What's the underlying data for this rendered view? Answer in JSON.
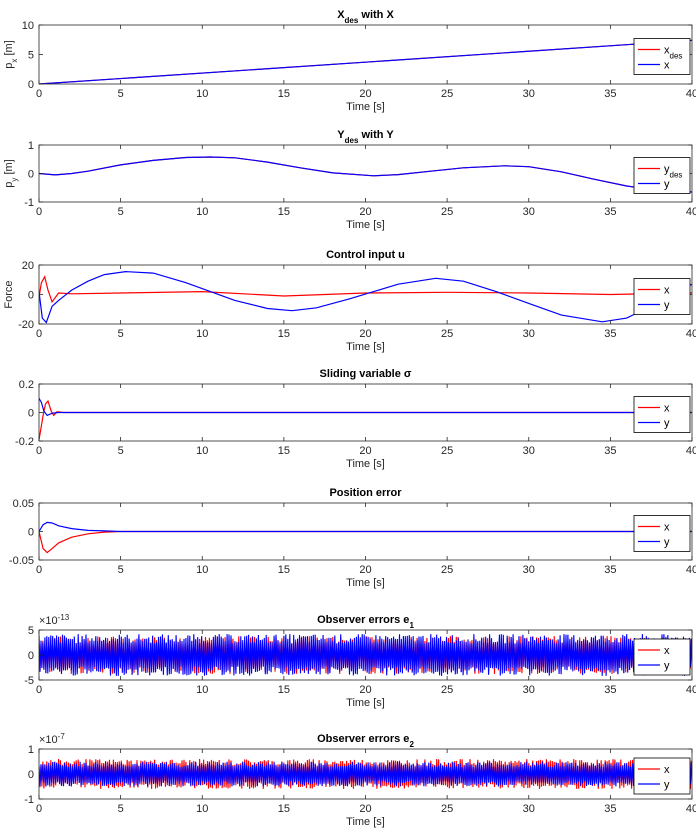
{
  "colors": {
    "x": "#ff0000",
    "y": "#0000ff",
    "axis": "#262626"
  },
  "chart_data": [
    {
      "type": "line",
      "title": "X",
      "title_sub": "des",
      "title_suffix": " with X",
      "xlabel": "Time [s]",
      "ylabel": "p",
      "ylabel_sub": "x",
      "ylabel_suffix": " [m]",
      "xlim": [
        0,
        40
      ],
      "ylim": [
        0,
        10
      ],
      "xticks": [
        0,
        5,
        10,
        15,
        20,
        25,
        30,
        35,
        40
      ],
      "yticks": [
        0,
        5,
        10
      ],
      "legend_position": "right",
      "series": [
        {
          "name": "x",
          "name_sub": "des",
          "color": "#ff0000",
          "x": [
            0,
            40
          ],
          "y": [
            0,
            7.4
          ]
        },
        {
          "name": "x",
          "color": "#0000ff",
          "x": [
            0,
            40
          ],
          "y": [
            0,
            7.4
          ]
        }
      ]
    },
    {
      "type": "line",
      "title": "Y",
      "title_sub": "des",
      "title_suffix": " with Y",
      "xlabel": "Time [s]",
      "ylabel": "p",
      "ylabel_sub": "y",
      "ylabel_suffix": " [m]",
      "xlim": [
        0,
        40
      ],
      "ylim": [
        -1,
        1
      ],
      "xticks": [
        0,
        5,
        10,
        15,
        20,
        25,
        30,
        35,
        40
      ],
      "yticks": [
        -1,
        0,
        1
      ],
      "legend_position": "right",
      "series": [
        {
          "name": "y",
          "name_sub": "des",
          "color": "#ff0000",
          "x": [
            0,
            1,
            2,
            3,
            5,
            7,
            9,
            10.5,
            12,
            14,
            16,
            18,
            20.5,
            22,
            24,
            26,
            28.5,
            30,
            32,
            34,
            36,
            38,
            40
          ],
          "y": [
            0,
            -0.05,
            0,
            0.08,
            0.3,
            0.46,
            0.56,
            0.58,
            0.55,
            0.4,
            0.2,
            0.02,
            -0.08,
            -0.04,
            0.08,
            0.2,
            0.27,
            0.24,
            0.06,
            -0.2,
            -0.44,
            -0.6,
            -0.65
          ]
        },
        {
          "name": "y",
          "color": "#0000ff",
          "x": [
            0,
            1,
            2,
            3,
            5,
            7,
            9,
            10.5,
            12,
            14,
            16,
            18,
            20.5,
            22,
            24,
            26,
            28.5,
            30,
            32,
            34,
            36,
            38,
            40
          ],
          "y": [
            0,
            -0.05,
            0,
            0.08,
            0.3,
            0.46,
            0.56,
            0.58,
            0.55,
            0.4,
            0.2,
            0.02,
            -0.08,
            -0.04,
            0.08,
            0.2,
            0.27,
            0.24,
            0.06,
            -0.2,
            -0.44,
            -0.6,
            -0.65
          ]
        }
      ]
    },
    {
      "type": "line",
      "title": "Control input u",
      "xlabel": "Time [s]",
      "ylabel": "Force",
      "xlim": [
        0,
        40
      ],
      "ylim": [
        -20,
        20
      ],
      "xticks": [
        0,
        5,
        10,
        15,
        20,
        25,
        30,
        35,
        40
      ],
      "yticks": [
        -20,
        0,
        20
      ],
      "legend_position": "right",
      "series": [
        {
          "name": "x",
          "color": "#ff0000",
          "x": [
            0,
            0.15,
            0.35,
            0.55,
            0.8,
            1.2,
            2,
            5,
            10,
            15,
            20,
            25,
            30,
            35,
            40
          ],
          "y": [
            -2,
            8,
            12,
            3,
            -5,
            1,
            0.5,
            1,
            2,
            -1,
            1,
            1.5,
            1,
            0,
            1
          ]
        },
        {
          "name": "y",
          "color": "#0000ff",
          "x": [
            0,
            0.2,
            0.45,
            0.8,
            1.2,
            2,
            3,
            4,
            5.3,
            7,
            9,
            10.5,
            12,
            14,
            15.5,
            17,
            19,
            20.5,
            22,
            24.3,
            26,
            28,
            30,
            32,
            34.5,
            36,
            38,
            40
          ],
          "y": [
            2,
            -16,
            -19,
            -8,
            -4,
            3,
            9,
            13.5,
            15.5,
            14.5,
            8,
            2,
            -4,
            -9.5,
            -11,
            -9,
            -3,
            2,
            7,
            11,
            9,
            2,
            -6,
            -14,
            -18.5,
            -16,
            -5,
            7
          ]
        }
      ]
    },
    {
      "type": "line",
      "title": "Sliding variable σ",
      "xlabel": "Time [s]",
      "ylabel": "",
      "xlim": [
        0,
        40
      ],
      "ylim": [
        -0.2,
        0.2
      ],
      "xticks": [
        0,
        5,
        10,
        15,
        20,
        25,
        30,
        35,
        40
      ],
      "yticks": [
        -0.2,
        0,
        0.2
      ],
      "legend_position": "right",
      "series": [
        {
          "name": "x",
          "color": "#ff0000",
          "x": [
            0,
            0.08,
            0.25,
            0.4,
            0.55,
            0.75,
            0.9,
            1.1,
            1.5,
            40
          ],
          "y": [
            -0.19,
            -0.14,
            -0.02,
            0.06,
            0.08,
            0.01,
            -0.02,
            0.005,
            0,
            0
          ]
        },
        {
          "name": "y",
          "color": "#0000ff",
          "x": [
            0,
            0.15,
            0.3,
            0.5,
            0.8,
            1.2,
            40
          ],
          "y": [
            0.1,
            0.07,
            0.01,
            -0.02,
            -0.005,
            0,
            0
          ]
        }
      ]
    },
    {
      "type": "line",
      "title": "Position error",
      "xlabel": "Time [s]",
      "ylabel": "",
      "xlim": [
        0,
        40
      ],
      "ylim": [
        -0.05,
        0.05
      ],
      "xticks": [
        0,
        5,
        10,
        15,
        20,
        25,
        30,
        35,
        40
      ],
      "yticks": [
        -0.05,
        0,
        0.05
      ],
      "legend_position": "right",
      "series": [
        {
          "name": "x",
          "color": "#ff0000",
          "x": [
            0,
            0.25,
            0.5,
            0.8,
            1.2,
            2,
            3,
            4,
            5,
            40
          ],
          "y": [
            0,
            -0.03,
            -0.037,
            -0.03,
            -0.02,
            -0.01,
            -0.004,
            -0.001,
            0,
            0
          ]
        },
        {
          "name": "y",
          "color": "#0000ff",
          "x": [
            0,
            0.25,
            0.5,
            0.8,
            1.2,
            2,
            3,
            4,
            5,
            40
          ],
          "y": [
            0,
            0.012,
            0.016,
            0.015,
            0.01,
            0.005,
            0.002,
            0.001,
            0,
            0
          ]
        }
      ]
    },
    {
      "type": "line",
      "title": "Observer errors e",
      "title_sub": "1",
      "xlabel": "Time [s]",
      "ylabel": "",
      "exponent": "×10",
      "exponent_sup": "-13",
      "xlim": [
        0,
        40
      ],
      "ylim": [
        -5,
        5
      ],
      "xticks": [
        0,
        5,
        10,
        15,
        20,
        25,
        30,
        35,
        40
      ],
      "yticks": [
        -5,
        0,
        5
      ],
      "legend_position": "right",
      "series": [
        {
          "name": "x",
          "color": "#ff0000",
          "amplitude": 3.8,
          "oscillating": true
        },
        {
          "name": "y",
          "color": "#0000ff",
          "amplitude": 4.2,
          "oscillating": true
        }
      ]
    },
    {
      "type": "line",
      "title": "Observer errors e",
      "title_sub": "2",
      "xlabel": "Time [s]",
      "ylabel": "",
      "exponent": "×10",
      "exponent_sup": "-7",
      "xlim": [
        0,
        40
      ],
      "ylim": [
        -1,
        1
      ],
      "xticks": [
        0,
        5,
        10,
        15,
        20,
        25,
        30,
        35,
        40
      ],
      "yticks": [
        -1,
        0,
        1
      ],
      "legend_position": "right",
      "series": [
        {
          "name": "x",
          "color": "#ff0000",
          "amplitude": 0.6,
          "oscillating": true
        },
        {
          "name": "y",
          "color": "#0000ff",
          "amplitude": 0.5,
          "oscillating": true
        }
      ]
    }
  ]
}
